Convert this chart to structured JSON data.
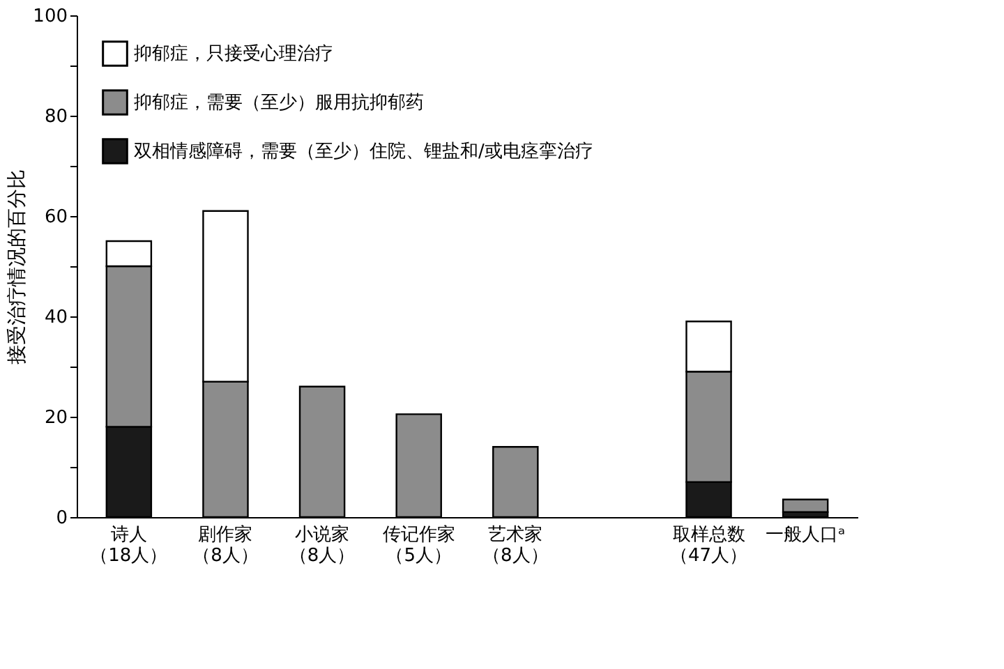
{
  "chart_data": {
    "type": "bar",
    "stacked": true,
    "ylabel": "接受治疗情况的百分比",
    "categories": [
      "诗人（18人）",
      "剧作家（8人）",
      "小说家（8人）",
      "传记作家（5人）",
      "艺术家（8人）",
      null,
      "取样总数（47人）",
      "一般人口ᵃ"
    ],
    "series": [
      {
        "name": "双相情感障碍，需要（至少）住院、锂盐和/或电痉挛治疗",
        "color": "#1a1a1a",
        "values": [
          18,
          null,
          null,
          null,
          null,
          null,
          7,
          1
        ]
      },
      {
        "name": "抑郁症，需要（至少）服用抗抑郁药",
        "color": "#8c8c8c",
        "values": [
          32,
          27,
          26,
          20.5,
          14,
          null,
          22,
          2.5
        ]
      },
      {
        "name": "抑郁症，只接受心理治疗",
        "color": "#ffffff",
        "values": [
          5,
          34,
          null,
          null,
          null,
          null,
          10,
          null
        ]
      }
    ],
    "ylim": [
      0,
      100
    ],
    "yticks": [
      0,
      {
        "value": 10,
        "label": null
      },
      20,
      {
        "value": 30,
        "label": null
      },
      40,
      {
        "value": 50,
        "label": null
      },
      60,
      {
        "value": 70,
        "label": null
      },
      80,
      {
        "value": 90,
        "label": null
      },
      100
    ],
    "legend": "top left",
    "grid": false
  }
}
